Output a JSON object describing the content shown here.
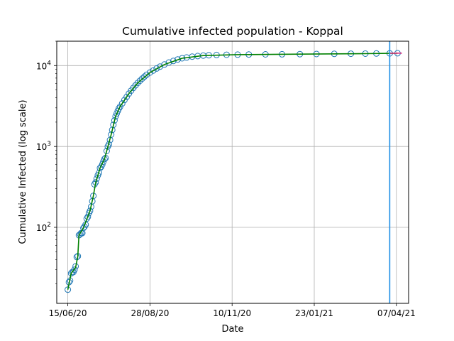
{
  "chart_data": {
    "type": "scatter",
    "title": "Cumulative infected population - Koppal",
    "xlabel": "Date",
    "ylabel": "Cumulative Infected (log scale)",
    "x_axis": {
      "type": "date",
      "range": [
        "2020-06-05",
        "2021-04-18"
      ],
      "ticks": [
        {
          "date": "2020-06-15",
          "label": "15/06/20"
        },
        {
          "date": "2020-08-28",
          "label": "28/08/20"
        },
        {
          "date": "2020-11-10",
          "label": "10/11/20"
        },
        {
          "date": "2021-01-23",
          "label": "23/01/21"
        },
        {
          "date": "2021-04-07",
          "label": "07/04/21"
        }
      ]
    },
    "y_axis": {
      "scale": "log",
      "range": [
        11.5,
        20000
      ],
      "ticks": [
        {
          "value": 100,
          "base": "10",
          "exp": "2"
        },
        {
          "value": 1000,
          "base": "10",
          "exp": "3"
        },
        {
          "value": 10000,
          "base": "10",
          "exp": "4"
        }
      ]
    },
    "grid": true,
    "vertical_line": {
      "date": "2021-04-01",
      "color": "#1f8fe6"
    },
    "series": [
      {
        "style": "markers",
        "marker": "open-circle",
        "color": "#1f77b4",
        "points": [
          [
            "2020-06-15",
            17
          ],
          [
            "2020-06-16",
            21
          ],
          [
            "2020-06-17",
            22
          ],
          [
            "2020-06-18",
            27
          ],
          [
            "2020-06-19",
            28
          ],
          [
            "2020-06-20",
            28
          ],
          [
            "2020-06-21",
            30
          ],
          [
            "2020-06-22",
            33
          ],
          [
            "2020-06-23",
            43
          ],
          [
            "2020-06-24",
            44
          ],
          [
            "2020-06-25",
            80
          ],
          [
            "2020-06-26",
            82
          ],
          [
            "2020-06-27",
            85
          ],
          [
            "2020-06-28",
            85
          ],
          [
            "2020-06-29",
            98
          ],
          [
            "2020-06-30",
            102
          ],
          [
            "2020-07-01",
            108
          ],
          [
            "2020-07-02",
            128
          ],
          [
            "2020-07-03",
            135
          ],
          [
            "2020-07-04",
            150
          ],
          [
            "2020-07-05",
            160
          ],
          [
            "2020-07-06",
            180
          ],
          [
            "2020-07-07",
            210
          ],
          [
            "2020-07-08",
            245
          ],
          [
            "2020-07-09",
            340
          ],
          [
            "2020-07-10",
            360
          ],
          [
            "2020-07-11",
            400
          ],
          [
            "2020-07-12",
            440
          ],
          [
            "2020-07-13",
            470
          ],
          [
            "2020-07-14",
            540
          ],
          [
            "2020-07-15",
            560
          ],
          [
            "2020-07-16",
            600
          ],
          [
            "2020-07-17",
            650
          ],
          [
            "2020-07-18",
            700
          ],
          [
            "2020-07-19",
            720
          ],
          [
            "2020-07-20",
            880
          ],
          [
            "2020-07-21",
            1000
          ],
          [
            "2020-07-22",
            1060
          ],
          [
            "2020-07-23",
            1200
          ],
          [
            "2020-07-24",
            1400
          ],
          [
            "2020-07-25",
            1600
          ],
          [
            "2020-07-26",
            1850
          ],
          [
            "2020-07-27",
            2100
          ],
          [
            "2020-07-28",
            2350
          ],
          [
            "2020-07-29",
            2550
          ],
          [
            "2020-07-30",
            2750
          ],
          [
            "2020-07-31",
            2950
          ],
          [
            "2020-08-01",
            3100
          ],
          [
            "2020-08-03",
            3400
          ],
          [
            "2020-08-05",
            3750
          ],
          [
            "2020-08-07",
            4100
          ],
          [
            "2020-08-09",
            4500
          ],
          [
            "2020-08-11",
            4900
          ],
          [
            "2020-08-13",
            5300
          ],
          [
            "2020-08-15",
            5700
          ],
          [
            "2020-08-17",
            6100
          ],
          [
            "2020-08-19",
            6500
          ],
          [
            "2020-08-21",
            6900
          ],
          [
            "2020-08-23",
            7300
          ],
          [
            "2020-08-25",
            7700
          ],
          [
            "2020-08-28",
            8200
          ],
          [
            "2020-08-31",
            8700
          ],
          [
            "2020-09-03",
            9200
          ],
          [
            "2020-09-06",
            9700
          ],
          [
            "2020-09-10",
            10300
          ],
          [
            "2020-09-14",
            10900
          ],
          [
            "2020-09-18",
            11400
          ],
          [
            "2020-09-22",
            11900
          ],
          [
            "2020-09-26",
            12300
          ],
          [
            "2020-09-30",
            12600
          ],
          [
            "2020-10-05",
            12900
          ],
          [
            "2020-10-10",
            13100
          ],
          [
            "2020-10-15",
            13300
          ],
          [
            "2020-10-20",
            13400
          ],
          [
            "2020-10-27",
            13500
          ],
          [
            "2020-11-05",
            13600
          ],
          [
            "2020-11-15",
            13650
          ],
          [
            "2020-11-25",
            13700
          ],
          [
            "2020-12-10",
            13750
          ],
          [
            "2020-12-25",
            13800
          ],
          [
            "2021-01-10",
            13850
          ],
          [
            "2021-01-25",
            13900
          ],
          [
            "2021-02-10",
            13950
          ],
          [
            "2021-02-25",
            14000
          ],
          [
            "2021-03-10",
            14050
          ],
          [
            "2021-03-20",
            14100
          ],
          [
            "2021-04-01",
            14150
          ],
          [
            "2021-04-08",
            14200
          ]
        ]
      },
      {
        "style": "line",
        "color": "#008000",
        "points": [
          [
            "2020-06-15",
            17
          ],
          [
            "2020-06-18",
            27
          ],
          [
            "2020-06-22",
            32
          ],
          [
            "2020-06-24",
            44
          ],
          [
            "2020-06-25",
            80
          ],
          [
            "2020-06-29",
            98
          ],
          [
            "2020-07-02",
            125
          ],
          [
            "2020-07-05",
            160
          ],
          [
            "2020-07-08",
            245
          ],
          [
            "2020-07-10",
            355
          ],
          [
            "2020-07-14",
            540
          ],
          [
            "2020-07-18",
            700
          ],
          [
            "2020-07-20",
            880
          ],
          [
            "2020-07-24",
            1400
          ],
          [
            "2020-07-28",
            2350
          ],
          [
            "2020-08-01",
            3100
          ],
          [
            "2020-08-09",
            4500
          ],
          [
            "2020-08-17",
            6100
          ],
          [
            "2020-08-28",
            8200
          ],
          [
            "2020-09-10",
            10300
          ],
          [
            "2020-09-26",
            12300
          ],
          [
            "2020-10-15",
            13300
          ],
          [
            "2020-11-15",
            13650
          ],
          [
            "2021-01-10",
            13850
          ],
          [
            "2021-03-10",
            14050
          ],
          [
            "2021-04-08",
            14200
          ]
        ]
      },
      {
        "style": "line",
        "color": "#e0307f",
        "points": [
          [
            "2021-04-01",
            14200
          ],
          [
            "2021-04-12",
            14250
          ]
        ]
      }
    ]
  }
}
